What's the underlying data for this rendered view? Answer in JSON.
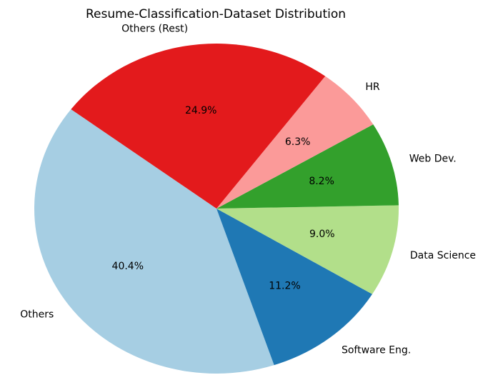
{
  "chart_data": {
    "type": "pie",
    "title": "Resume-Classification-Dataset Distribution",
    "categories": [
      "Others",
      "Software Eng.",
      "Data Science",
      "Web Dev.",
      "HR",
      "Others (Rest)"
    ],
    "values": [
      40.4,
      11.2,
      9.0,
      8.2,
      6.3,
      24.9
    ],
    "value_labels": [
      "40.4%",
      "11.2%",
      "9.0%",
      "8.2%",
      "6.3%",
      "24.9%"
    ],
    "colors": [
      "#a6cee3",
      "#1f78b4",
      "#b2df8a",
      "#33a02c",
      "#fb9a99",
      "#e31a1c"
    ]
  }
}
